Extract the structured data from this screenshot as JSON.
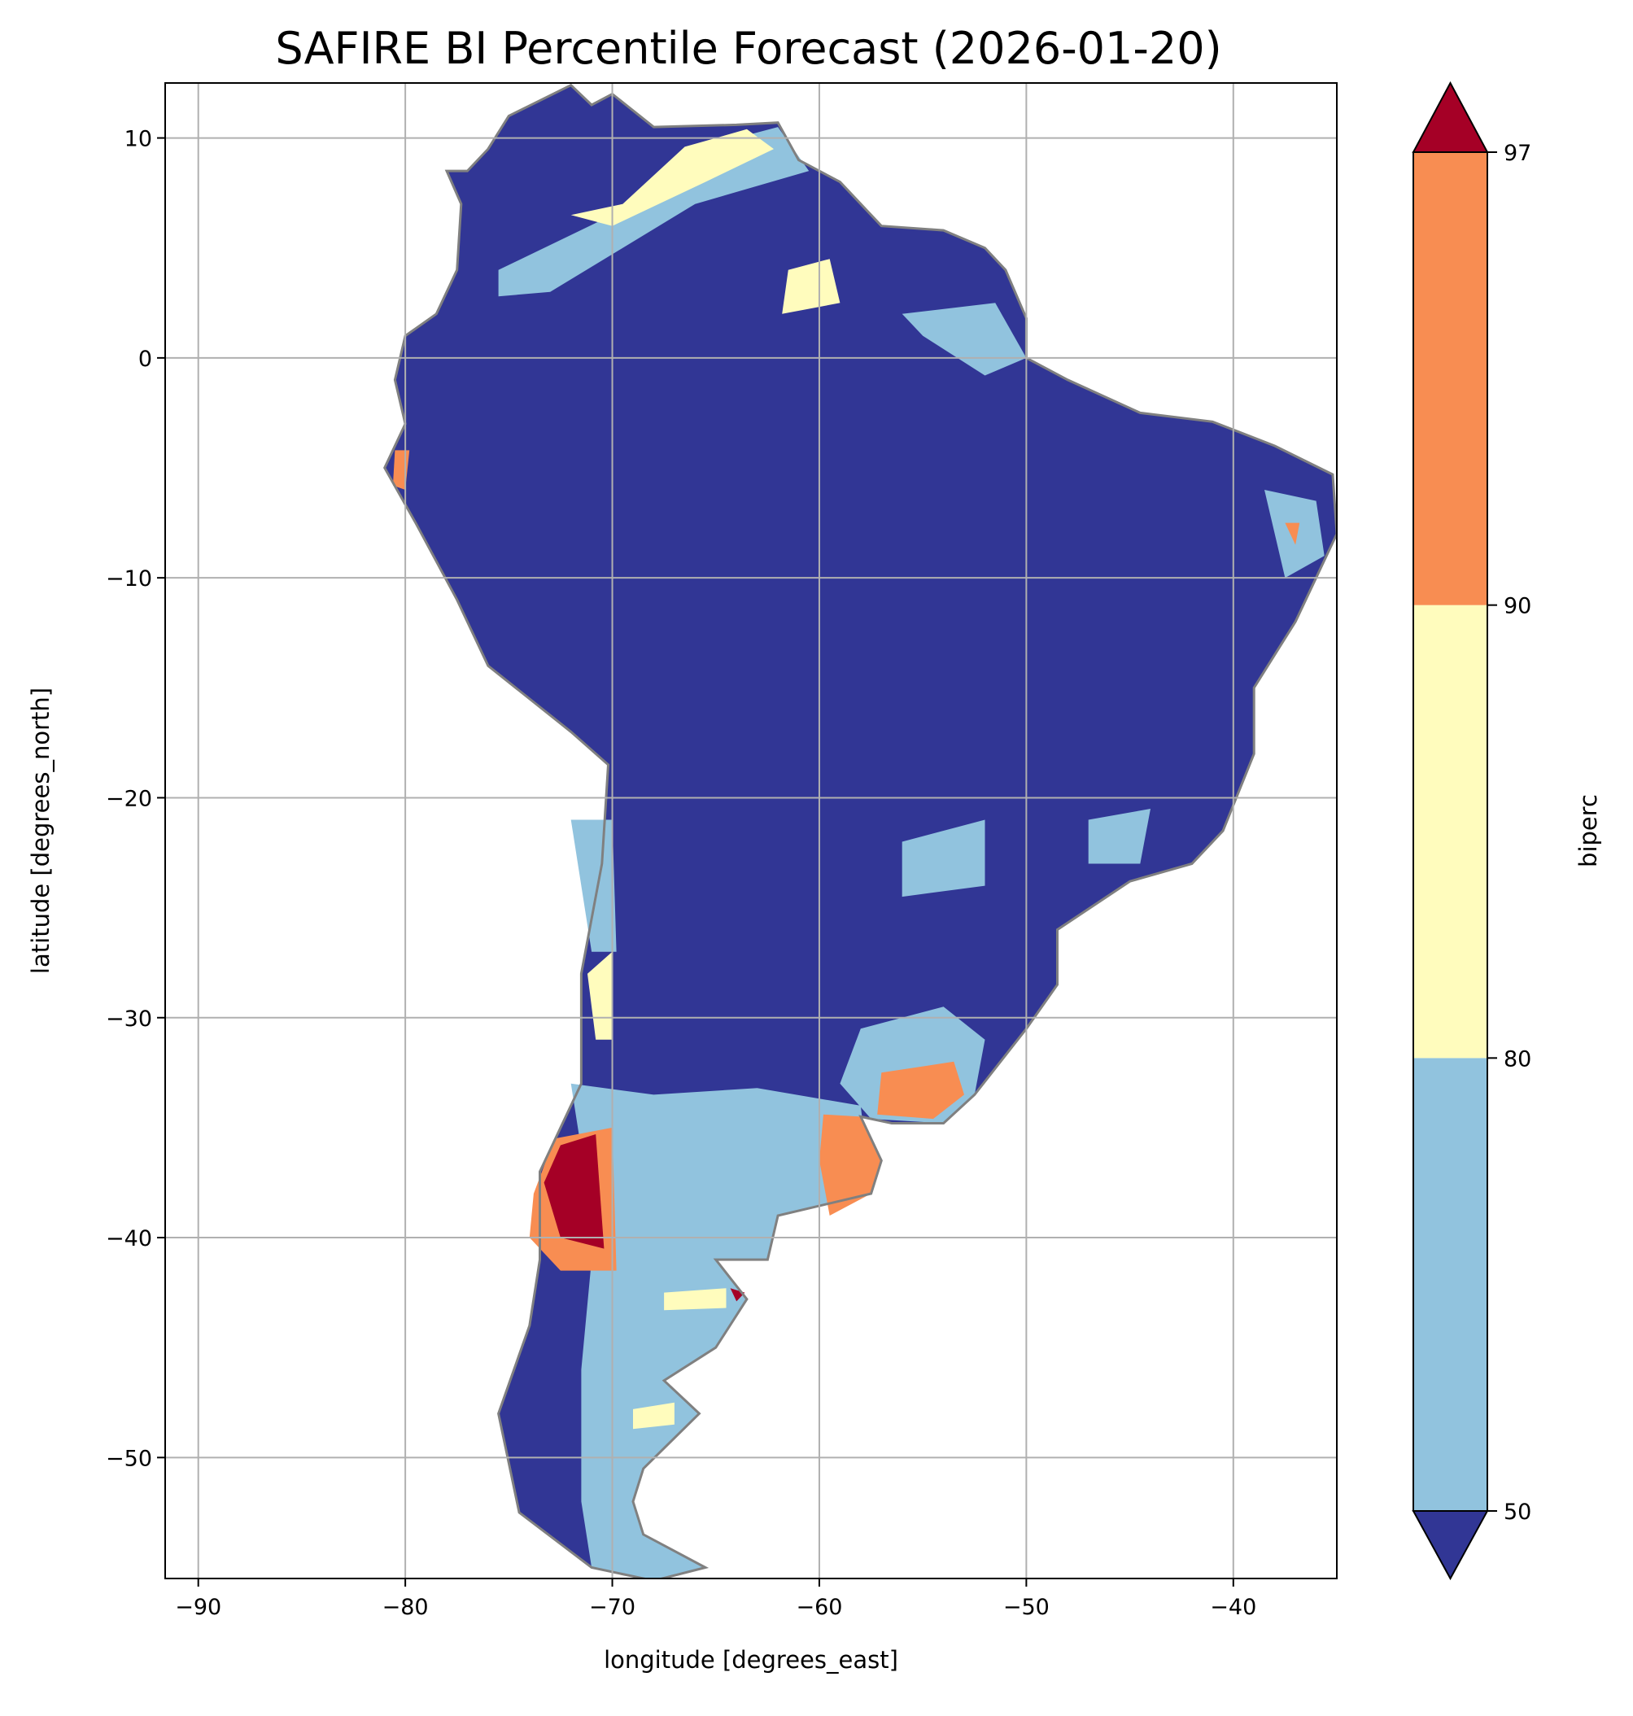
{
  "chart_data": {
    "type": "heatmap",
    "title": "SAFIRE BI Percentile Forecast (2026-01-20)",
    "xlabel": "longitude [degrees_east]",
    "ylabel": "latitude [degrees_north]",
    "xlim": [
      -91.6,
      -35.0
    ],
    "ylim": [
      -55.5,
      12.5
    ],
    "xticks": [
      -90,
      -80,
      -70,
      -60,
      -50,
      -40
    ],
    "yticks": [
      10,
      0,
      -10,
      -20,
      -30,
      -40,
      -50
    ],
    "xtick_labels": [
      "−90",
      "−80",
      "−70",
      "−60",
      "−50",
      "−40"
    ],
    "ytick_labels": [
      "10",
      "0",
      "−10",
      "−20",
      "−30",
      "−40",
      "−50"
    ],
    "grid": true,
    "colorbar": {
      "label": "biperc",
      "levels": [
        50,
        80,
        90,
        97
      ],
      "tick_labels": [
        "50",
        "80",
        "90",
        "97"
      ],
      "colors": {
        "below": "#313695",
        "50-80": "#91c3de",
        "80-90": "#fffcbd",
        "90-97": "#f88d52",
        "above": "#a50026"
      },
      "extend": "both"
    },
    "land_outline": [
      [
        -77,
        8.5
      ],
      [
        -76,
        9.5
      ],
      [
        -75,
        11
      ],
      [
        -72,
        12.4
      ],
      [
        -71,
        11.5
      ],
      [
        -70,
        12
      ],
      [
        -68,
        10.5
      ],
      [
        -64,
        10.6
      ],
      [
        -62,
        10.7
      ],
      [
        -61,
        9
      ],
      [
        -59,
        8
      ],
      [
        -57,
        6
      ],
      [
        -54,
        5.8
      ],
      [
        -52,
        5
      ],
      [
        -51,
        4
      ],
      [
        -50,
        1.8
      ],
      [
        -50,
        0
      ],
      [
        -48,
        -1
      ],
      [
        -44.5,
        -2.5
      ],
      [
        -41,
        -2.9
      ],
      [
        -38,
        -4
      ],
      [
        -35.2,
        -5.3
      ],
      [
        -35,
        -8
      ],
      [
        -37,
        -12
      ],
      [
        -39,
        -15
      ],
      [
        -39,
        -18
      ],
      [
        -40.5,
        -21.5
      ],
      [
        -42,
        -23
      ],
      [
        -45,
        -23.8
      ],
      [
        -48.5,
        -26
      ],
      [
        -48.5,
        -28.5
      ],
      [
        -50,
        -30.5
      ],
      [
        -52.5,
        -33.5
      ],
      [
        -54,
        -34.8
      ],
      [
        -56.5,
        -34.8
      ],
      [
        -58,
        -34.5
      ],
      [
        -57,
        -36.5
      ],
      [
        -57.5,
        -38
      ],
      [
        -62,
        -39
      ],
      [
        -62.5,
        -41
      ],
      [
        -65,
        -41
      ],
      [
        -63.5,
        -42.8
      ],
      [
        -65,
        -45
      ],
      [
        -67.5,
        -46.5
      ],
      [
        -65.8,
        -48
      ],
      [
        -68.5,
        -50.5
      ],
      [
        -69,
        -52
      ],
      [
        -68.5,
        -53.5
      ],
      [
        -65.5,
        -55
      ],
      [
        -68,
        -55.6
      ],
      [
        -71,
        -55
      ],
      [
        -74.5,
        -52.5
      ],
      [
        -75.5,
        -48
      ],
      [
        -74,
        -44
      ],
      [
        -73.5,
        -41
      ],
      [
        -73.5,
        -37
      ],
      [
        -71.5,
        -33
      ],
      [
        -71.5,
        -28
      ],
      [
        -70.5,
        -23
      ],
      [
        -70.2,
        -18.5
      ],
      [
        -72,
        -17
      ],
      [
        -76,
        -14
      ],
      [
        -77.5,
        -11
      ],
      [
        -79.5,
        -7.5
      ],
      [
        -81,
        -5
      ],
      [
        -80,
        -3
      ],
      [
        -80.5,
        -1
      ],
      [
        -80,
        1
      ],
      [
        -78.5,
        2
      ],
      [
        -77.5,
        4
      ],
      [
        -77.3,
        7
      ],
      [
        -78,
        8.5
      ]
    ],
    "regions": [
      {
        "category": "50-80",
        "points": [
          [
            -72,
            -33
          ],
          [
            -68,
            -33.5
          ],
          [
            -63,
            -33.2
          ],
          [
            -58,
            -34
          ],
          [
            -57.5,
            -38
          ],
          [
            -62,
            -39
          ],
          [
            -62.5,
            -41
          ],
          [
            -65,
            -41
          ],
          [
            -63.5,
            -42.8
          ],
          [
            -65,
            -45
          ],
          [
            -67.5,
            -46.5
          ],
          [
            -65.8,
            -48
          ],
          [
            -68.5,
            -50.5
          ],
          [
            -69,
            -52
          ],
          [
            -68.5,
            -53.5
          ],
          [
            -65.5,
            -55
          ],
          [
            -68,
            -55.6
          ],
          [
            -71,
            -55
          ],
          [
            -71.5,
            -52
          ],
          [
            -71.5,
            -46
          ],
          [
            -71,
            -41
          ],
          [
            -71.5,
            -36
          ]
        ]
      },
      {
        "category": "50-80",
        "points": [
          [
            -58,
            -30.5
          ],
          [
            -54,
            -29.5
          ],
          [
            -52,
            -31
          ],
          [
            -52.5,
            -33.5
          ],
          [
            -54,
            -34.8
          ],
          [
            -57.5,
            -34.6
          ],
          [
            -59,
            -33
          ]
        ]
      },
      {
        "category": "90-97",
        "points": [
          [
            -59.8,
            -34.4
          ],
          [
            -58,
            -34.5
          ],
          [
            -57,
            -36.5
          ],
          [
            -57.5,
            -38
          ],
          [
            -59.5,
            -39
          ],
          [
            -60,
            -36.5
          ]
        ]
      },
      {
        "category": "90-97",
        "points": [
          [
            -57,
            -32.5
          ],
          [
            -53.5,
            -32
          ],
          [
            -53,
            -33.5
          ],
          [
            -54.5,
            -34.6
          ],
          [
            -57.2,
            -34.4
          ]
        ]
      },
      {
        "category": "80-90",
        "points": [
          [
            -71.2,
            -28
          ],
          [
            -70,
            -27
          ],
          [
            -70,
            -31
          ],
          [
            -70.8,
            -31
          ]
        ]
      },
      {
        "category": "90-97",
        "points": [
          [
            -73.8,
            -38
          ],
          [
            -72.8,
            -35.5
          ],
          [
            -70,
            -35
          ],
          [
            -69.8,
            -41.5
          ],
          [
            -72.5,
            -41.5
          ],
          [
            -74,
            -40
          ]
        ]
      },
      {
        "category": "above",
        "points": [
          [
            -73.3,
            -37.5
          ],
          [
            -72.5,
            -35.8
          ],
          [
            -70.8,
            -35.3
          ],
          [
            -70.4,
            -40.5
          ],
          [
            -72.5,
            -40
          ]
        ]
      },
      {
        "category": "80-90",
        "points": [
          [
            -67.5,
            -42.5
          ],
          [
            -64.5,
            -42.3
          ],
          [
            -64.5,
            -43.2
          ],
          [
            -67.5,
            -43.3
          ]
        ]
      },
      {
        "category": "above",
        "points": [
          [
            -64.3,
            -42.3
          ],
          [
            -63.6,
            -42.5
          ],
          [
            -64,
            -42.9
          ]
        ]
      },
      {
        "category": "80-90",
        "points": [
          [
            -69,
            -47.8
          ],
          [
            -67,
            -47.5
          ],
          [
            -67,
            -48.5
          ],
          [
            -69,
            -48.7
          ]
        ]
      },
      {
        "category": "50-80",
        "points": [
          [
            -72,
            -21
          ],
          [
            -70,
            -21
          ],
          [
            -69.8,
            -27
          ],
          [
            -71,
            -27
          ]
        ]
      },
      {
        "category": "50-80",
        "points": [
          [
            -75.5,
            4
          ],
          [
            -70,
            6.5
          ],
          [
            -66,
            9.5
          ],
          [
            -62,
            10.5
          ],
          [
            -60.5,
            8.5
          ],
          [
            -66,
            7
          ],
          [
            -73,
            3
          ],
          [
            -75.5,
            2.8
          ]
        ]
      },
      {
        "category": "80-90",
        "points": [
          [
            -72,
            6.5
          ],
          [
            -69.5,
            7
          ],
          [
            -66.5,
            9.6
          ],
          [
            -63.5,
            10.4
          ],
          [
            -62.2,
            9.5
          ],
          [
            -65.5,
            8
          ],
          [
            -70,
            6
          ]
        ]
      },
      {
        "category": "80-90",
        "points": [
          [
            -61.5,
            4
          ],
          [
            -59.5,
            4.5
          ],
          [
            -59,
            2.5
          ],
          [
            -61.8,
            2
          ]
        ]
      },
      {
        "category": "50-80",
        "points": [
          [
            -56,
            2
          ],
          [
            -51.5,
            2.5
          ],
          [
            -50,
            0
          ],
          [
            -52,
            -0.8
          ],
          [
            -55,
            1
          ]
        ]
      },
      {
        "category": "50-80",
        "points": [
          [
            -38.5,
            -6
          ],
          [
            -36,
            -6.5
          ],
          [
            -35.6,
            -9
          ],
          [
            -37.5,
            -10
          ]
        ]
      },
      {
        "category": "90-97",
        "points": [
          [
            -37.5,
            -7.5
          ],
          [
            -36.8,
            -7.5
          ],
          [
            -37,
            -8.5
          ]
        ]
      },
      {
        "category": "50-80",
        "points": [
          [
            -56,
            -22
          ],
          [
            -52,
            -21
          ],
          [
            -52,
            -24
          ],
          [
            -56,
            -24.5
          ]
        ]
      },
      {
        "category": "50-80",
        "points": [
          [
            -47,
            -21
          ],
          [
            -44,
            -20.5
          ],
          [
            -44.5,
            -23
          ],
          [
            -47,
            -23
          ]
        ]
      },
      {
        "category": "90-97",
        "points": [
          [
            -80.5,
            -4.2
          ],
          [
            -79.8,
            -4.2
          ],
          [
            -80,
            -6
          ],
          [
            -80.6,
            -5.8
          ]
        ]
      }
    ]
  }
}
